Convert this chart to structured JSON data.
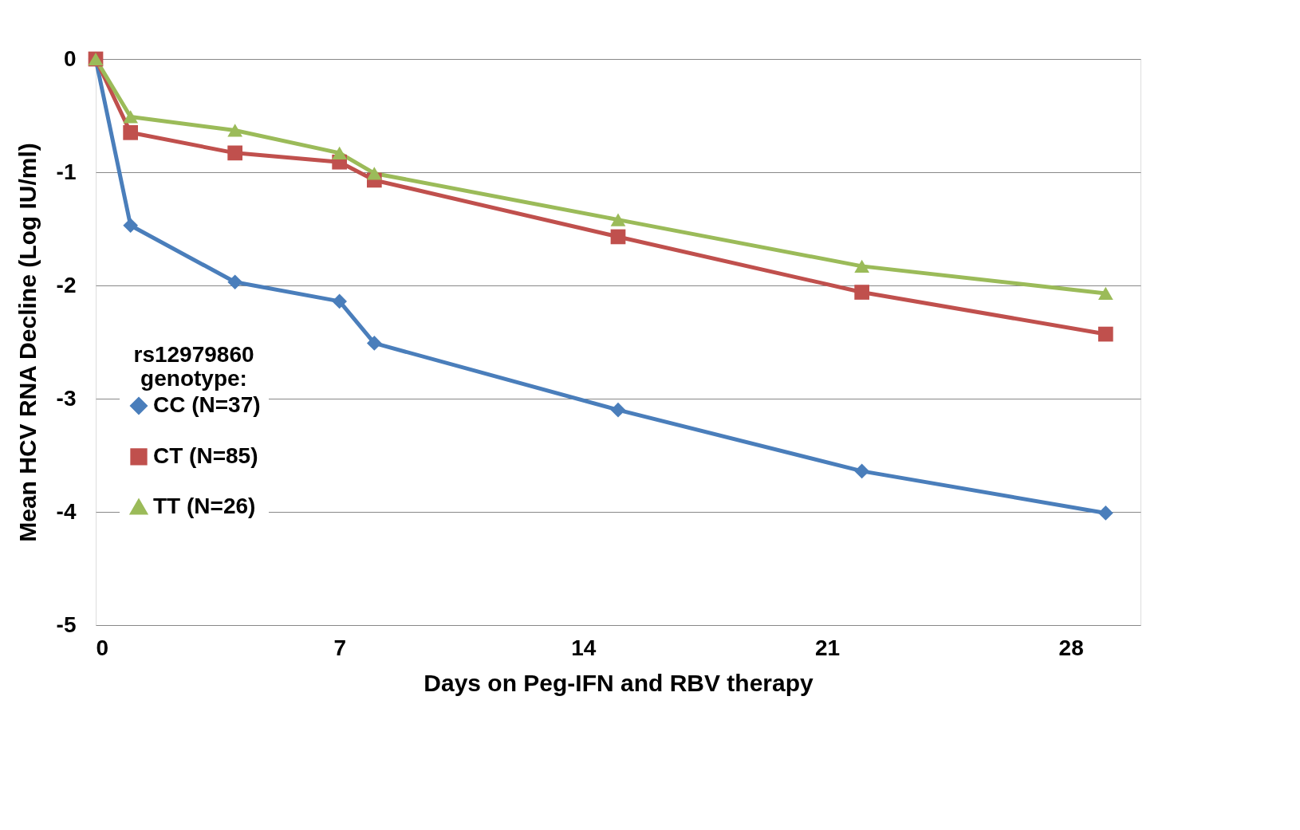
{
  "chart_data": {
    "type": "line",
    "xlabel": "Days  on Peg-IFN and RBV therapy",
    "ylabel": "Mean  HCV RNA  Decline  (Log  IU/ml)",
    "legend_title": "rs12979860 genotype:",
    "x": [
      0,
      1,
      4,
      7,
      8,
      15,
      22,
      29
    ],
    "series": [
      {
        "name": "CC (N=37)",
        "color": "#4a7ebb",
        "marker": "diamond",
        "values": [
          0,
          -1.47,
          -1.97,
          -2.14,
          -2.51,
          -3.1,
          -3.64,
          -4.01
        ]
      },
      {
        "name": "CT (N=85)",
        "color": "#c0504d",
        "marker": "square",
        "values": [
          0,
          -0.65,
          -0.83,
          -0.91,
          -1.07,
          -1.57,
          -2.06,
          -2.43
        ]
      },
      {
        "name": "TT (N=26)",
        "color": "#9bbb59",
        "marker": "triangle",
        "values": [
          0,
          -0.51,
          -0.63,
          -0.83,
          -1.01,
          -1.42,
          -1.83,
          -2.07
        ]
      }
    ],
    "xlim": [
      0,
      30
    ],
    "xticks": [
      0,
      7,
      14,
      21,
      28
    ],
    "ylim": [
      -5,
      0
    ],
    "yticks": [
      0,
      -1,
      -2,
      -3,
      -4,
      -5
    ],
    "grid": "y",
    "legend": "left",
    "line_style": "solid"
  }
}
